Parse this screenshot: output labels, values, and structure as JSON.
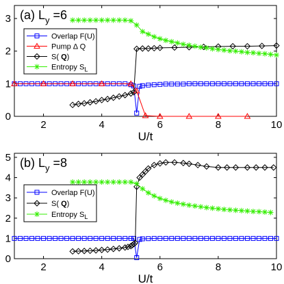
{
  "chart_data": [
    {
      "type": "line",
      "panel_label": "(a) L",
      "panel_sub": "y",
      "panel_suffix": " =6",
      "xlabel": "U/t",
      "xlim": [
        1,
        10
      ],
      "ylim": [
        0,
        3.4
      ],
      "xticks": [
        2,
        4,
        6,
        8,
        10
      ],
      "yticks": [
        0,
        1,
        2,
        3
      ],
      "grid": false,
      "legend_position": "left",
      "series": [
        {
          "name": "Overlap F(U)",
          "color": "#0000ff",
          "marker": "square",
          "x": [
            1.0,
            1.2,
            1.4,
            1.6,
            1.8,
            2.0,
            2.2,
            2.4,
            2.6,
            2.8,
            3.0,
            3.2,
            3.4,
            3.6,
            3.8,
            4.0,
            4.2,
            4.4,
            4.6,
            4.8,
            5.0,
            5.1,
            5.2,
            5.3,
            5.4,
            5.6,
            5.8,
            6.0,
            6.2,
            6.4,
            6.6,
            6.8,
            7.0,
            7.2,
            7.4,
            7.6,
            7.8,
            8.0,
            8.2,
            8.4,
            8.6,
            8.8,
            9.0,
            9.2,
            9.4,
            9.6,
            9.8,
            10.0
          ],
          "y": [
            1.0,
            1.0,
            1.0,
            1.0,
            1.0,
            1.0,
            1.0,
            1.0,
            1.0,
            1.0,
            1.0,
            1.0,
            1.0,
            1.0,
            1.0,
            1.0,
            1.0,
            1.0,
            1.0,
            1.0,
            0.97,
            0.93,
            0.1,
            0.92,
            0.94,
            0.96,
            0.97,
            0.98,
            0.99,
            0.99,
            0.99,
            0.99,
            1.0,
            1.0,
            1.0,
            1.0,
            1.0,
            1.0,
            1.0,
            1.0,
            1.0,
            1.0,
            1.0,
            1.0,
            1.0,
            1.0,
            1.0,
            1.0
          ]
        },
        {
          "name": "Pump Δ Q",
          "color": "#ff0000",
          "marker": "triangle",
          "x": [
            1.0,
            2.0,
            3.0,
            4.0,
            5.0,
            5.2,
            5.5,
            6.0,
            7.0,
            8.0,
            9.0
          ],
          "y": [
            1.0,
            1.0,
            1.0,
            1.0,
            1.0,
            0.78,
            0.02,
            0.0,
            0.0,
            0.0,
            0.0
          ]
        },
        {
          "name": "S( Q)",
          "label_main": "S( ",
          "label_bold": "Q",
          "label_end": ")",
          "color": "#000000",
          "marker": "diamond",
          "x": [
            3.0,
            3.2,
            3.4,
            3.6,
            3.8,
            4.0,
            4.2,
            4.4,
            4.6,
            4.8,
            5.0,
            5.1,
            5.2,
            5.4,
            5.6,
            5.8,
            6.0,
            6.5,
            7.0,
            7.5,
            8.0,
            8.5,
            9.0,
            9.5,
            10.0
          ],
          "y": [
            0.35,
            0.38,
            0.4,
            0.43,
            0.46,
            0.5,
            0.53,
            0.57,
            0.61,
            0.65,
            0.7,
            0.74,
            2.07,
            2.08,
            2.08,
            2.09,
            2.1,
            2.11,
            2.12,
            2.13,
            2.14,
            2.15,
            2.15,
            2.16,
            2.17
          ]
        },
        {
          "name": "Entropy S",
          "label_main": "Entropy S",
          "label_sub": "L",
          "color": "#33ee00",
          "marker": "star",
          "x": [
            3.0,
            3.2,
            3.4,
            3.6,
            3.8,
            4.0,
            4.2,
            4.4,
            4.6,
            4.8,
            5.0,
            5.2,
            5.4,
            5.6,
            5.8,
            6.0,
            6.2,
            6.4,
            6.6,
            6.8,
            7.0,
            7.2,
            7.4,
            7.6,
            7.8,
            8.0,
            8.2,
            8.4,
            8.6,
            8.8,
            9.0,
            9.2,
            9.4,
            9.6,
            9.8,
            10.0
          ],
          "y": [
            2.95,
            2.95,
            2.95,
            2.95,
            2.95,
            2.95,
            2.95,
            2.95,
            2.95,
            2.95,
            2.93,
            2.8,
            2.6,
            2.52,
            2.44,
            2.38,
            2.33,
            2.29,
            2.25,
            2.21,
            2.18,
            2.15,
            2.12,
            2.1,
            2.07,
            2.05,
            2.03,
            2.01,
            2.0,
            1.98,
            1.96,
            1.95,
            1.93,
            1.92,
            1.9,
            1.88
          ]
        }
      ]
    },
    {
      "type": "line",
      "panel_label": "(b) L",
      "panel_sub": "y",
      "panel_suffix": " =8",
      "xlabel": "U/t",
      "xlim": [
        1,
        10
      ],
      "ylim": [
        0,
        5.2
      ],
      "xticks": [
        2,
        4,
        6,
        8,
        10
      ],
      "yticks": [
        0,
        1,
        2,
        3,
        4,
        5
      ],
      "grid": false,
      "legend_position": "left",
      "series": [
        {
          "name": "Overlap F(U)",
          "color": "#0000ff",
          "marker": "square",
          "x": [
            1.0,
            1.2,
            1.4,
            1.6,
            1.8,
            2.0,
            2.2,
            2.4,
            2.6,
            2.8,
            3.0,
            3.2,
            3.4,
            3.6,
            3.8,
            4.0,
            4.2,
            4.4,
            4.6,
            4.8,
            5.0,
            5.1,
            5.2,
            5.3,
            5.4,
            5.6,
            5.8,
            6.0,
            6.2,
            6.4,
            6.6,
            6.8,
            7.0,
            7.2,
            7.4,
            7.6,
            7.8,
            8.0,
            8.2,
            8.4,
            8.6,
            8.8,
            9.0,
            9.2,
            9.4,
            9.6,
            9.8,
            10.0
          ],
          "y": [
            1.0,
            1.0,
            1.0,
            1.0,
            1.0,
            1.0,
            1.0,
            1.0,
            1.0,
            1.0,
            1.0,
            1.0,
            1.0,
            1.0,
            1.0,
            1.0,
            1.0,
            1.0,
            1.0,
            1.0,
            1.0,
            1.0,
            0.05,
            0.95,
            0.98,
            0.99,
            1.0,
            1.0,
            1.0,
            1.0,
            1.0,
            1.0,
            1.0,
            1.0,
            1.0,
            1.0,
            1.0,
            1.0,
            1.0,
            1.0,
            1.0,
            1.0,
            1.0,
            1.0,
            1.0,
            1.0,
            1.0,
            1.0
          ]
        },
        {
          "name": "S( Q)",
          "label_main": "S( ",
          "label_bold": "Q",
          "label_end": ")",
          "color": "#000000",
          "marker": "diamond",
          "x": [
            3.0,
            3.2,
            3.4,
            3.6,
            3.8,
            4.0,
            4.2,
            4.4,
            4.6,
            4.8,
            4.9,
            5.0,
            5.05,
            5.1,
            5.15,
            5.2,
            5.3,
            5.4,
            5.5,
            5.6,
            5.8,
            6.0,
            6.2,
            6.5,
            6.8,
            7.0,
            7.3,
            7.6,
            8.0,
            8.3,
            8.6,
            9.0,
            9.3,
            9.6,
            9.9
          ],
          "y": [
            0.36,
            0.37,
            0.38,
            0.39,
            0.41,
            0.43,
            0.45,
            0.48,
            0.51,
            0.55,
            0.58,
            0.62,
            0.67,
            0.72,
            0.78,
            3.55,
            4.0,
            4.15,
            4.3,
            4.45,
            4.62,
            4.7,
            4.75,
            4.75,
            4.72,
            4.68,
            4.62,
            4.55,
            4.5,
            4.5,
            4.5,
            4.5,
            4.5,
            4.5,
            4.5
          ]
        },
        {
          "name": "Entropy S",
          "label_main": "Entropy S",
          "label_sub": "L",
          "color": "#33ee00",
          "marker": "star",
          "x": [
            3.0,
            3.2,
            3.4,
            3.6,
            3.8,
            4.0,
            4.2,
            4.4,
            4.6,
            4.8,
            5.0,
            5.2,
            5.4,
            5.6,
            5.8,
            6.0,
            6.2,
            6.4,
            6.6,
            6.8,
            7.0,
            7.2,
            7.4,
            7.6,
            7.8,
            8.0,
            8.2,
            8.4,
            8.6,
            8.8,
            9.0,
            9.2,
            9.4,
            9.6,
            9.8
          ],
          "y": [
            3.78,
            3.78,
            3.78,
            3.78,
            3.78,
            3.78,
            3.78,
            3.78,
            3.78,
            3.78,
            3.78,
            3.7,
            3.45,
            3.25,
            3.1,
            2.97,
            2.88,
            2.8,
            2.74,
            2.69,
            2.64,
            2.6,
            2.56,
            2.52,
            2.49,
            2.46,
            2.43,
            2.41,
            2.39,
            2.37,
            2.35,
            2.33,
            2.32,
            2.3,
            2.28
          ]
        }
      ]
    }
  ]
}
